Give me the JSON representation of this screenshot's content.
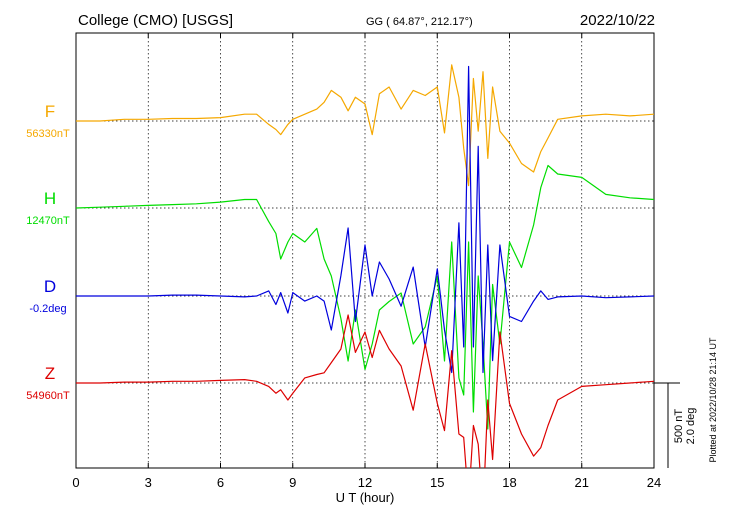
{
  "header": {
    "station": "College (CMO)  [USGS]",
    "coords": "GG ( 64.87°, 212.17°)",
    "date": "2022/10/22"
  },
  "side_note": "Plotted at 2022/10/28 21:14 UT",
  "colors": {
    "F": "#f5a800",
    "H": "#00dd00",
    "D": "#0000dd",
    "Z": "#dd0000",
    "grid": "#000000"
  },
  "chart_data": {
    "type": "line",
    "xlabel": "U T (hour)",
    "xlim": [
      0,
      24
    ],
    "x_ticks": [
      "0",
      "3",
      "6",
      "9",
      "12",
      "15",
      "18",
      "21",
      "24"
    ],
    "scale_bar": {
      "label_nt": "500 nT",
      "label_deg": "2.0 deg"
    },
    "series": [
      {
        "name": "F",
        "baseline_label": "56330nT",
        "x": [
          0,
          1,
          2,
          3,
          4,
          5,
          6,
          7,
          7.5,
          8,
          8.3,
          8.5,
          8.8,
          9,
          9.5,
          10,
          10.3,
          10.6,
          11,
          11.3,
          11.6,
          12,
          12.3,
          12.6,
          13,
          13.5,
          14,
          14.5,
          15,
          15.3,
          15.6,
          15.9,
          16.1,
          16.3,
          16.5,
          16.7,
          16.9,
          17.1,
          17.3,
          17.6,
          18,
          18.5,
          19,
          19.3,
          19.6,
          20,
          21,
          22,
          23,
          24
        ],
        "y": [
          0,
          0,
          10,
          10,
          15,
          15,
          20,
          40,
          40,
          -20,
          -50,
          -80,
          -20,
          10,
          40,
          70,
          110,
          180,
          140,
          60,
          140,
          100,
          -80,
          160,
          200,
          70,
          180,
          150,
          200,
          -70,
          330,
          140,
          -160,
          -380,
          250,
          -60,
          290,
          -220,
          200,
          -60,
          -130,
          -250,
          -300,
          -180,
          -100,
          10,
          30,
          40,
          30,
          40
        ]
      },
      {
        "name": "H",
        "baseline_label": "12470nT",
        "x": [
          0,
          1,
          2,
          3,
          4,
          5,
          6,
          7,
          7.5,
          8,
          8.3,
          8.5,
          8.8,
          9,
          9.5,
          10,
          10.3,
          10.6,
          11,
          11.3,
          11.6,
          12,
          12.3,
          12.6,
          13,
          13.5,
          14,
          14.5,
          15,
          15.3,
          15.6,
          15.9,
          16.1,
          16.3,
          16.5,
          16.7,
          16.9,
          17.1,
          17.3,
          17.6,
          18,
          18.5,
          19,
          19.3,
          19.6,
          20,
          21,
          22,
          23,
          24
        ],
        "y": [
          0,
          5,
          10,
          15,
          20,
          25,
          35,
          50,
          50,
          -80,
          -150,
          -300,
          -200,
          -150,
          -200,
          -120,
          -300,
          -400,
          -650,
          -900,
          -600,
          -950,
          -800,
          -600,
          -550,
          -500,
          -800,
          -700,
          -400,
          -900,
          -200,
          -1000,
          -1100,
          -200,
          -1200,
          -400,
          -800,
          -1300,
          -450,
          -800,
          -200,
          -350,
          -100,
          120,
          250,
          200,
          180,
          80,
          60,
          50
        ]
      },
      {
        "name": "D",
        "baseline_label": "-0.2deg",
        "x": [
          0,
          1,
          2,
          3,
          4,
          5,
          6,
          7,
          7.5,
          8,
          8.3,
          8.5,
          8.8,
          9,
          9.5,
          10,
          10.3,
          10.6,
          11,
          11.3,
          11.6,
          12,
          12.3,
          12.6,
          13,
          13.5,
          14,
          14.5,
          15,
          15.3,
          15.6,
          15.9,
          16.1,
          16.3,
          16.5,
          16.7,
          16.9,
          17.1,
          17.3,
          17.6,
          18,
          18.5,
          19,
          19.3,
          19.6,
          20,
          21,
          22,
          23,
          24
        ],
        "y": [
          0,
          0,
          0,
          0,
          5,
          5,
          0,
          -5,
          0,
          30,
          -50,
          20,
          -100,
          20,
          -30,
          0,
          -30,
          -200,
          120,
          400,
          -150,
          300,
          0,
          200,
          100,
          -60,
          170,
          -300,
          160,
          -200,
          -450,
          430,
          -300,
          1350,
          -300,
          880,
          -450,
          300,
          -380,
          300,
          -120,
          -150,
          -30,
          30,
          -20,
          -5,
          0,
          -10,
          -5,
          0
        ]
      },
      {
        "name": "Z",
        "baseline_label": "54960nT",
        "x": [
          0,
          1,
          2,
          3,
          4,
          5,
          6,
          7,
          7.5,
          8,
          8.3,
          8.5,
          8.8,
          9,
          9.5,
          10,
          10.3,
          10.6,
          11,
          11.3,
          11.6,
          12,
          12.3,
          12.6,
          13,
          13.5,
          14,
          14.5,
          15,
          15.3,
          15.6,
          15.9,
          16.1,
          16.3,
          16.5,
          16.7,
          16.9,
          17.1,
          17.3,
          17.6,
          18,
          18.5,
          19,
          19.3,
          19.6,
          20,
          21,
          22,
          23,
          24
        ],
        "y": [
          0,
          0,
          5,
          5,
          10,
          10,
          15,
          20,
          10,
          -20,
          -60,
          -40,
          -100,
          -60,
          30,
          50,
          60,
          120,
          200,
          400,
          180,
          300,
          150,
          310,
          200,
          100,
          -160,
          230,
          -120,
          -280,
          190,
          -300,
          -320,
          -700,
          -250,
          -360,
          -760,
          -100,
          -450,
          300,
          -120,
          -300,
          -430,
          -380,
          -250,
          -100,
          -20,
          -10,
          0,
          10
        ]
      }
    ]
  }
}
